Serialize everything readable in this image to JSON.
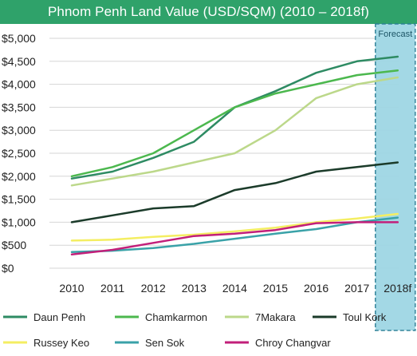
{
  "chart_data": {
    "type": "line",
    "title": "Phnom Penh Land Value (USD/SQM) (2010 – 2018f)",
    "categories": [
      "2010",
      "2011",
      "2012",
      "2013",
      "2014",
      "2015",
      "2016",
      "2017",
      "2018f"
    ],
    "y_ticks": [
      "$0",
      "$500",
      "$1,000",
      "$1,500",
      "$2,000",
      "$2,500",
      "$3,000",
      "$3,500",
      "$4,000",
      "$4,500",
      "$5,000"
    ],
    "ylim": [
      0,
      5000
    ],
    "grid": "horizontal",
    "legend_position": "bottom",
    "forecast_label": "Forecast",
    "series": [
      {
        "name": "Daun Penh",
        "color": "#2e8b63",
        "values": [
          1950,
          2100,
          2400,
          2750,
          3500,
          3850,
          4250,
          4500,
          4600
        ]
      },
      {
        "name": "Chamkarmon",
        "color": "#4cb84e",
        "values": [
          2000,
          2200,
          2500,
          3000,
          3500,
          3800,
          4000,
          4200,
          4300
        ]
      },
      {
        "name": "7Makara",
        "color": "#bcd88a",
        "values": [
          1800,
          1950,
          2100,
          2300,
          2500,
          3000,
          3700,
          4000,
          4150
        ]
      },
      {
        "name": "Toul Kork",
        "color": "#1b3b2a",
        "values": [
          1000,
          1150,
          1300,
          1350,
          1700,
          1850,
          2100,
          2200,
          2300
        ]
      },
      {
        "name": "Russey Keo",
        "color": "#f4ee62",
        "values": [
          600,
          620,
          680,
          730,
          800,
          880,
          1000,
          1080,
          1180
        ]
      },
      {
        "name": "Sen Sok",
        "color": "#3aa2a8",
        "values": [
          350,
          380,
          440,
          530,
          640,
          750,
          850,
          1000,
          1100
        ]
      },
      {
        "name": "Chroy Changvar",
        "color": "#c21f7a",
        "values": [
          300,
          400,
          550,
          700,
          750,
          830,
          980,
          1000,
          1000
        ]
      }
    ]
  }
}
